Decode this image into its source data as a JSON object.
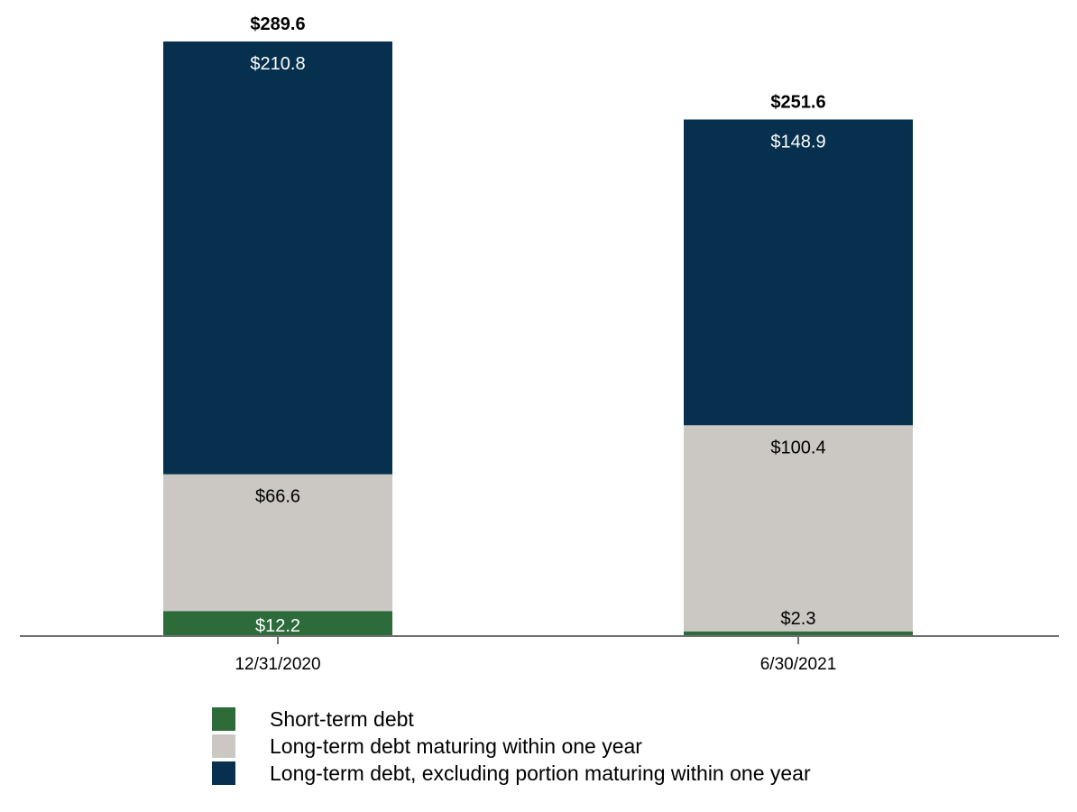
{
  "chart_data": {
    "type": "bar",
    "stacked": true,
    "categories": [
      "12/31/2020",
      "6/30/2021"
    ],
    "series": [
      {
        "name": "Short-term debt",
        "values": [
          12.2,
          2.3
        ],
        "labels": [
          "$12.2",
          "$2.3"
        ],
        "color": "#2e6b3a",
        "label_color": "#ffffff"
      },
      {
        "name": "Long-term debt maturing within one year",
        "values": [
          66.6,
          100.4
        ],
        "labels": [
          "$66.6",
          "$100.4"
        ],
        "color": "#cbc8c4",
        "label_color": "#000000"
      },
      {
        "name": "Long-term debt, excluding portion maturing within one year",
        "values": [
          210.8,
          148.9
        ],
        "labels": [
          "$210.8",
          "$148.9"
        ],
        "color": "#06304d",
        "label_color": "#ffffff"
      }
    ],
    "totals": [
      289.6,
      251.6
    ],
    "total_labels": [
      "$289.6",
      "$251.6"
    ],
    "ylim": [
      0,
      289.6
    ],
    "grid": false,
    "legend_position": "bottom"
  }
}
